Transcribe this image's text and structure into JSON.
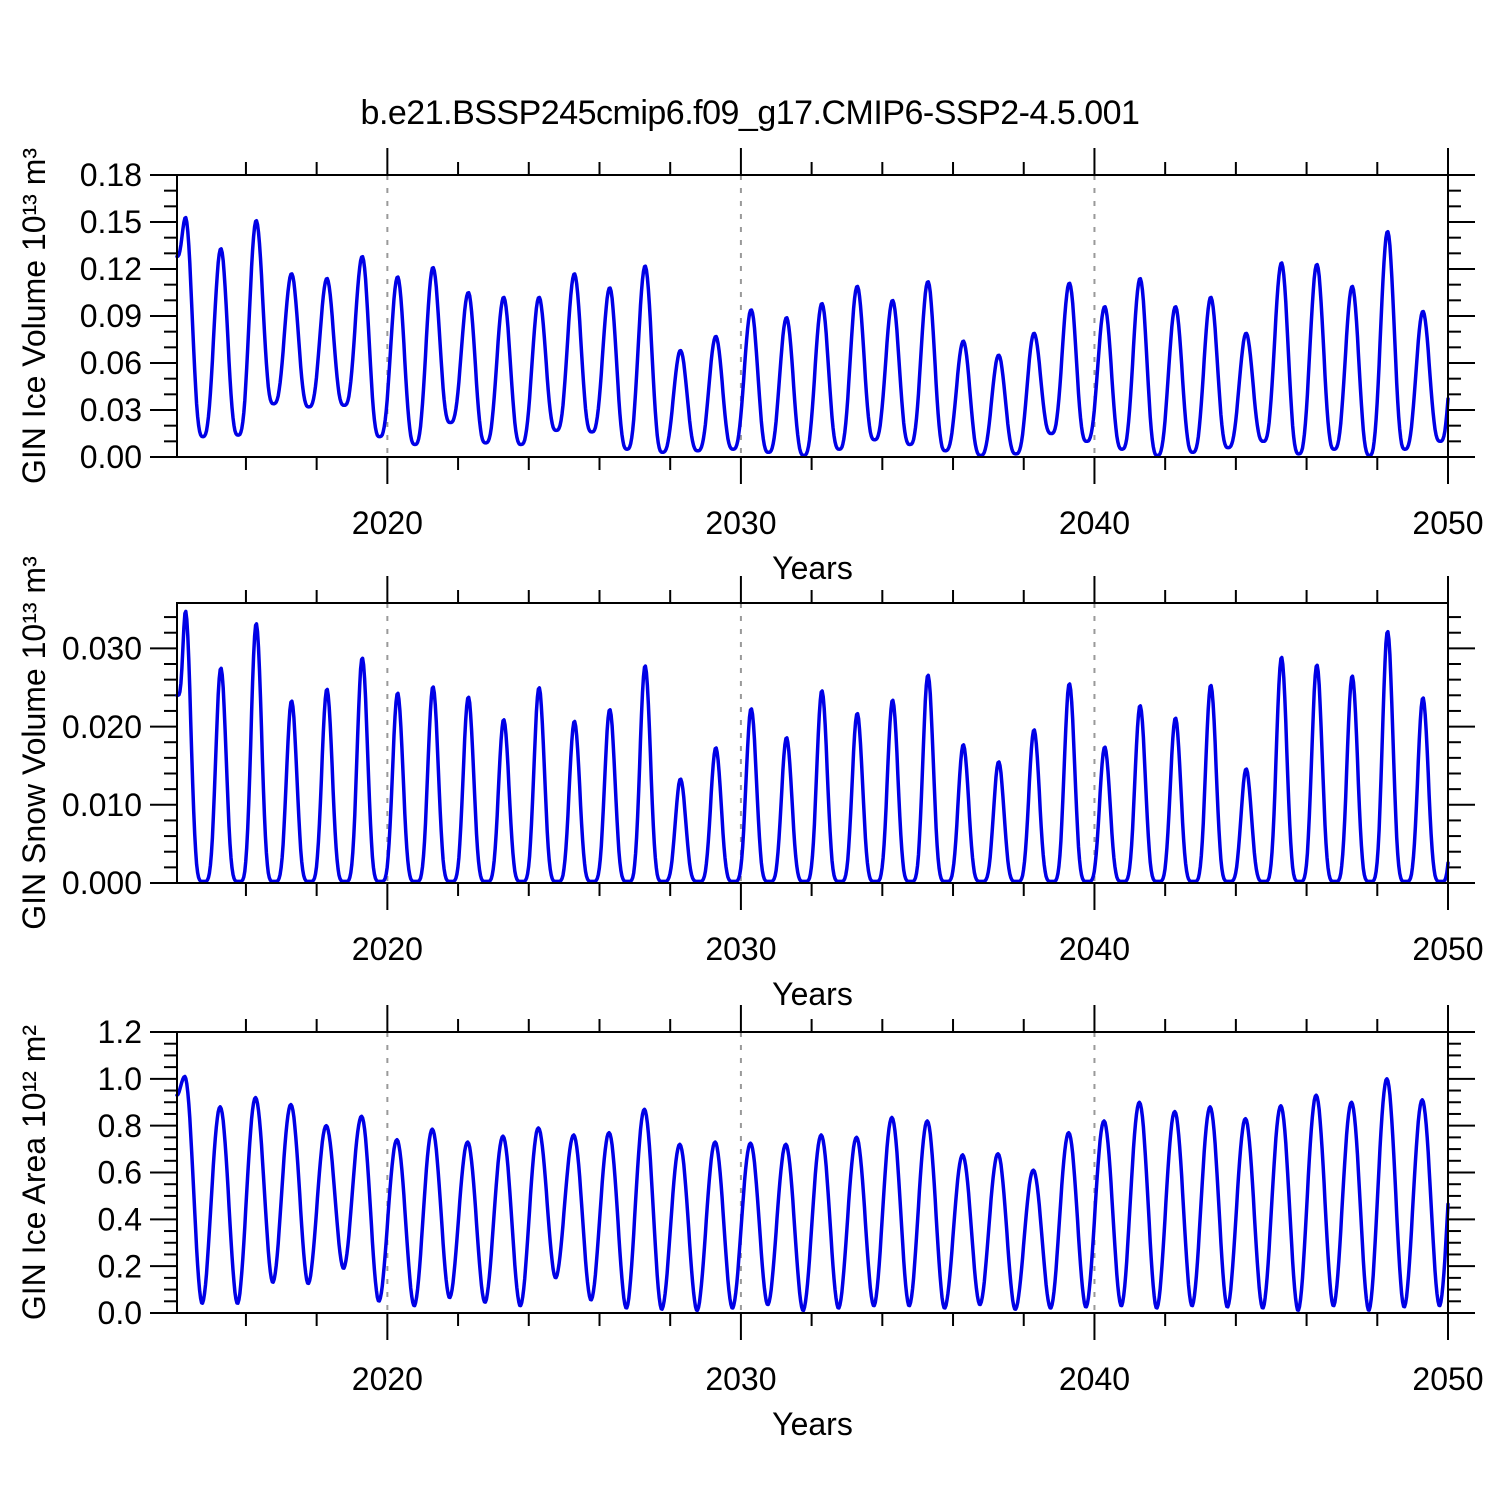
{
  "title": "b.e21.BSSP245cmip6.f09_g17.CMIP6-SSP2-4.5.001",
  "colors": {
    "series": "#0000E6",
    "axis": "#000000",
    "grid": "#999999"
  },
  "chart_data": [
    {
      "type": "line",
      "name": "ice_volume",
      "ylabel": "GIN Ice Volume 10¹³ m³",
      "xlabel": "Years",
      "xlim": [
        2014.05,
        2050
      ],
      "ylim": [
        0,
        0.18
      ],
      "xticks": [
        2020,
        2030,
        2040,
        2050
      ],
      "x_minor_step": 2,
      "yticks": [
        0,
        0.03,
        0.06,
        0.09,
        0.12,
        0.15,
        0.18
      ],
      "ytick_decimals": 2,
      "y_minor_step": 0.01,
      "grid_x_dashed": [
        2020,
        2030,
        2040
      ],
      "legend": "none",
      "grid": "dashed vertical at decade ticks only",
      "seasonality": {
        "peak_phase": 0.29,
        "trough_phase": 0.78,
        "shape_power": 1.5,
        "start_value": 0.128,
        "end_peak": 0.12,
        "note": "monthly seasonal cycle: annual spring maximum, late-summer minimum"
      },
      "years": [
        2014,
        2015,
        2016,
        2017,
        2018,
        2019,
        2020,
        2021,
        2022,
        2023,
        2024,
        2025,
        2026,
        2027,
        2028,
        2029,
        2030,
        2031,
        2032,
        2033,
        2034,
        2035,
        2036,
        2037,
        2038,
        2039,
        2040,
        2041,
        2042,
        2043,
        2044,
        2045,
        2046,
        2047,
        2048,
        2049
      ],
      "annual_max": [
        0.153,
        0.133,
        0.151,
        0.117,
        0.114,
        0.128,
        0.115,
        0.121,
        0.105,
        0.102,
        0.102,
        0.117,
        0.108,
        0.122,
        0.068,
        0.077,
        0.094,
        0.089,
        0.098,
        0.109,
        0.1,
        0.112,
        0.074,
        0.065,
        0.079,
        0.111,
        0.096,
        0.114,
        0.096,
        0.102,
        0.079,
        0.124,
        0.123,
        0.109,
        0.144,
        0.093
      ],
      "annual_min": [
        0.013,
        0.014,
        0.034,
        0.032,
        0.033,
        0.013,
        0.008,
        0.022,
        0.009,
        0.008,
        0.017,
        0.016,
        0.005,
        0.003,
        0.004,
        0.005,
        0.003,
        0.001,
        0.005,
        0.011,
        0.008,
        0.004,
        0.001,
        0.002,
        0.015,
        0.01,
        0.005,
        0.001,
        0.003,
        0.006,
        0.01,
        0.002,
        0.005,
        0.001,
        0.005,
        0.01
      ]
    },
    {
      "type": "line",
      "name": "snow_volume",
      "ylabel": "GIN Snow Volume 10¹³ m³",
      "xlabel": "Years",
      "xlim": [
        2014.05,
        2050
      ],
      "ylim": [
        0,
        0.0358
      ],
      "xticks": [
        2020,
        2030,
        2040,
        2050
      ],
      "x_minor_step": 2,
      "yticks": [
        0,
        0.01,
        0.02,
        0.03
      ],
      "ytick_decimals": 3,
      "y_minor_step": 0.002,
      "grid_x_dashed": [
        2020,
        2030,
        2040
      ],
      "legend": "none",
      "grid": "dashed vertical at decade ticks only",
      "seasonality": {
        "peak_phase": 0.29,
        "trough_phase": 0.8,
        "shape_power": 2.4,
        "start_value": 0.024,
        "end_peak": 0.028,
        "note": "monthly seasonal cycle: sharp winter/spring peak, flat near-zero summer"
      },
      "years": [
        2014,
        2015,
        2016,
        2017,
        2018,
        2019,
        2020,
        2021,
        2022,
        2023,
        2024,
        2025,
        2026,
        2027,
        2028,
        2029,
        2030,
        2031,
        2032,
        2033,
        2034,
        2035,
        2036,
        2037,
        2038,
        2039,
        2040,
        2041,
        2042,
        2043,
        2044,
        2045,
        2046,
        2047,
        2048,
        2049
      ],
      "annual_max": [
        0.0348,
        0.0275,
        0.0332,
        0.0233,
        0.0248,
        0.0288,
        0.0243,
        0.0251,
        0.0238,
        0.0209,
        0.025,
        0.0207,
        0.0222,
        0.0278,
        0.0133,
        0.0173,
        0.0223,
        0.0186,
        0.0246,
        0.0217,
        0.0234,
        0.0266,
        0.0177,
        0.0155,
        0.0196,
        0.0255,
        0.0174,
        0.0227,
        0.0211,
        0.0253,
        0.0146,
        0.0289,
        0.0279,
        0.0265,
        0.0322,
        0.0237
      ],
      "annual_min": [
        0.0002,
        0.0002,
        0.0002,
        0.0002,
        0.0002,
        0.0002,
        0.0002,
        0.0002,
        0.0002,
        0.0002,
        0.0002,
        0.0002,
        0.0002,
        0.0002,
        0.0002,
        0.0002,
        0.0002,
        0.0002,
        0.0002,
        0.0002,
        0.0002,
        0.0002,
        0.0002,
        0.0002,
        0.0002,
        0.0002,
        0.0002,
        0.0002,
        0.0002,
        0.0002,
        0.0002,
        0.0002,
        0.0002,
        0.0002,
        0.0002,
        0.0002
      ]
    },
    {
      "type": "line",
      "name": "ice_area",
      "ylabel": "GIN Ice Area 10¹² m²",
      "xlabel": "Years",
      "xlim": [
        2014.05,
        2050
      ],
      "ylim": [
        0,
        1.2
      ],
      "xticks": [
        2020,
        2030,
        2040,
        2050
      ],
      "x_minor_step": 2,
      "yticks": [
        0,
        0.2,
        0.4,
        0.6,
        0.8,
        1.0,
        1.2
      ],
      "ytick_decimals": 1,
      "y_minor_step": 0.05,
      "grid_x_dashed": [
        2020,
        2030,
        2040
      ],
      "legend": "none",
      "grid": "dashed vertical at decade ticks only",
      "seasonality": {
        "peak_phase": 0.27,
        "trough_phase": 0.76,
        "shape_power": 0.95,
        "start_value": 0.93,
        "end_peak": 0.95,
        "note": "monthly seasonal cycle: broad winter maximum, summer minimum"
      },
      "years": [
        2014,
        2015,
        2016,
        2017,
        2018,
        2019,
        2020,
        2021,
        2022,
        2023,
        2024,
        2025,
        2026,
        2027,
        2028,
        2029,
        2030,
        2031,
        2032,
        2033,
        2034,
        2035,
        2036,
        2037,
        2038,
        2039,
        2040,
        2041,
        2042,
        2043,
        2044,
        2045,
        2046,
        2047,
        2048,
        2049
      ],
      "annual_max": [
        1.01,
        0.88,
        0.92,
        0.89,
        0.8,
        0.84,
        0.74,
        0.785,
        0.73,
        0.755,
        0.79,
        0.76,
        0.77,
        0.87,
        0.72,
        0.73,
        0.725,
        0.72,
        0.76,
        0.75,
        0.835,
        0.82,
        0.675,
        0.68,
        0.61,
        0.77,
        0.82,
        0.9,
        0.86,
        0.88,
        0.83,
        0.885,
        0.93,
        0.9,
        1.0,
        0.91
      ],
      "annual_min": [
        0.04,
        0.04,
        0.13,
        0.125,
        0.19,
        0.05,
        0.03,
        0.065,
        0.045,
        0.03,
        0.15,
        0.055,
        0.02,
        0.015,
        0.01,
        0.02,
        0.035,
        0.01,
        0.02,
        0.03,
        0.03,
        0.02,
        0.035,
        0.015,
        0.02,
        0.025,
        0.03,
        0.02,
        0.03,
        0.025,
        0.02,
        0.01,
        0.03,
        0.01,
        0.025,
        0.03
      ]
    }
  ]
}
